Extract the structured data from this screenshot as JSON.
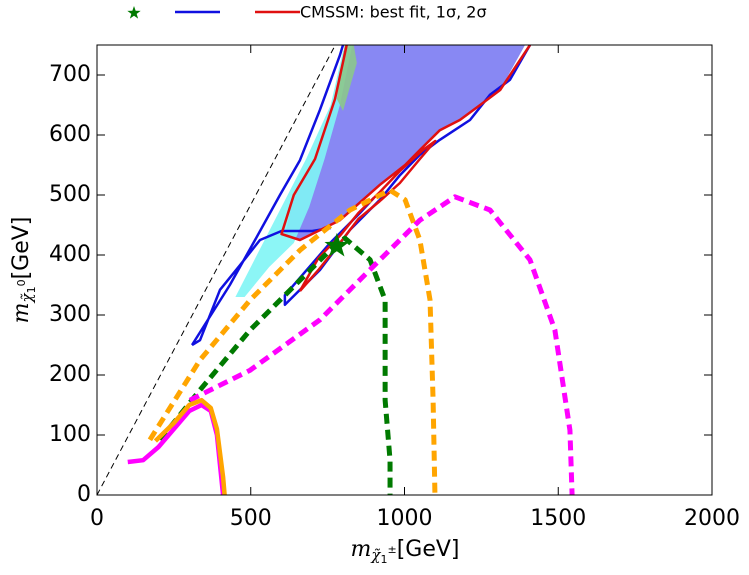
{
  "chart_data": {
    "type": "line",
    "legend_text": "CMSSM: best fit, 1σ, 2σ",
    "x_label": {
      "symbol": "m",
      "sub": "χ̃",
      "sub_index": "1",
      "sub_sup": "±",
      "unit": "[GeV]"
    },
    "y_label": {
      "symbol": "m",
      "sub": "χ̃",
      "sub_index": "1",
      "sub_sup": "0",
      "unit": "[GeV]"
    },
    "xlim": [
      0,
      2000
    ],
    "ylim": [
      0,
      750
    ],
    "xticks": [
      0,
      500,
      1000,
      1500,
      2000
    ],
    "yticks": [
      0,
      100,
      200,
      300,
      400,
      500,
      600,
      700
    ],
    "series": [
      {
        "style": "fill",
        "color": "#7b7bf2",
        "x": [
          611,
          640,
          709,
          774,
          823,
          1392,
          1311,
          1246,
          1180,
          1115,
          1050,
          1002,
          920,
          790,
          660,
          611
        ],
        "y": [
          433,
          500,
          558,
          658,
          750,
          750,
          675,
          650,
          625,
          608,
          575,
          550,
          517,
          458,
          425,
          433
        ]
      },
      {
        "style": "fill",
        "color": "#7ff5f5",
        "x": [
          450,
          520,
          600,
          680,
          760,
          800,
          830,
          790,
          740,
          690,
          640,
          560,
          480,
          450
        ],
        "y": [
          330,
          400,
          480,
          560,
          650,
          740,
          750,
          650,
          560,
          480,
          420,
          380,
          330,
          330
        ]
      },
      {
        "style": "fill",
        "color": "#8cc88c",
        "x": [
          780,
          805,
          835,
          845,
          800,
          780
        ],
        "y": [
          660,
          750,
          750,
          720,
          640,
          660
        ]
      },
      {
        "style": "thin-dashed",
        "color": "#000000",
        "x": [
          0,
          775
        ],
        "y": [
          0,
          750
        ]
      },
      {
        "style": "solid",
        "color": "#1010e0",
        "x": [
          309,
          432,
          514,
          595,
          660,
          725,
          790,
          800,
          null,
          1408,
          1343,
          1278,
          1213,
          1115,
          1050,
          985,
          920,
          823,
          725,
          611,
          611,
          758,
          855,
          900,
          null,
          760,
          700,
          600,
          530,
          465,
          400,
          335,
          309
        ],
        "y": [
          250,
          350,
          425,
          500,
          558,
          642,
          733,
          750,
          null,
          750,
          692,
          667,
          625,
          592,
          567,
          533,
          492,
          442,
          375,
          317,
          333,
          420,
          470,
          495,
          null,
          445,
          440,
          440,
          425,
          383,
          342,
          258,
          250
        ]
      },
      {
        "style": "solid",
        "color": "#e01010",
        "x": [
          1408,
          1311,
          1246,
          1180,
          1115,
          1050,
          1002,
          920,
          790,
          660,
          600,
          640,
          709,
          774,
          812,
          null,
          660,
          720,
          790,
          850,
          920,
          985,
          1050,
          1100,
          1060,
          985,
          920,
          850,
          790,
          720,
          660
        ],
        "y": [
          750,
          675,
          650,
          625,
          608,
          575,
          550,
          517,
          458,
          425,
          435,
          500,
          560,
          660,
          750,
          null,
          340,
          375,
          420,
          460,
          490,
          520,
          560,
          590,
          575,
          540,
          505,
          470,
          432,
          395,
          340
        ]
      },
      {
        "style": "dashed",
        "color": "#007a00",
        "x": [
          205,
          335,
          498,
          660,
          758,
          806,
          888,
          937,
          937,
          953,
          953
        ],
        "y": [
          92,
          175,
          275,
          358,
          408,
          428,
          392,
          325,
          158,
          58,
          0
        ]
      },
      {
        "style": "dashed",
        "color": "#ffa500",
        "x": [
          172,
          335,
          498,
          660,
          823,
          953,
          1002,
          1050,
          1083,
          1093,
          1099
        ],
        "y": [
          92,
          225,
          325,
          408,
          475,
          508,
          492,
          425,
          325,
          158,
          0
        ]
      },
      {
        "style": "dashed",
        "color": "#ff00ff",
        "x": [
          302,
          498,
          725,
          920,
          1050,
          1164,
          1278,
          1408,
          1489,
          1538,
          1545
        ],
        "y": [
          158,
          208,
          292,
          392,
          458,
          497,
          475,
          392,
          275,
          108,
          0
        ]
      },
      {
        "style": "solid-thick",
        "color": "#ff00ff",
        "x": [
          100,
          150,
          200,
          250,
          300,
          340,
          370,
          390,
          400,
          410
        ],
        "y": [
          55,
          58,
          80,
          110,
          140,
          150,
          140,
          100,
          50,
          0
        ]
      },
      {
        "style": "solid-thick",
        "color": "#ffa500",
        "x": [
          190,
          250,
          300,
          340,
          370,
          390,
          400,
          410,
          415
        ],
        "y": [
          90,
          120,
          150,
          158,
          145,
          110,
          70,
          30,
          0
        ]
      },
      {
        "style": "star",
        "color": "#007a00",
        "x": [
          780
        ],
        "y": [
          415
        ]
      }
    ]
  }
}
